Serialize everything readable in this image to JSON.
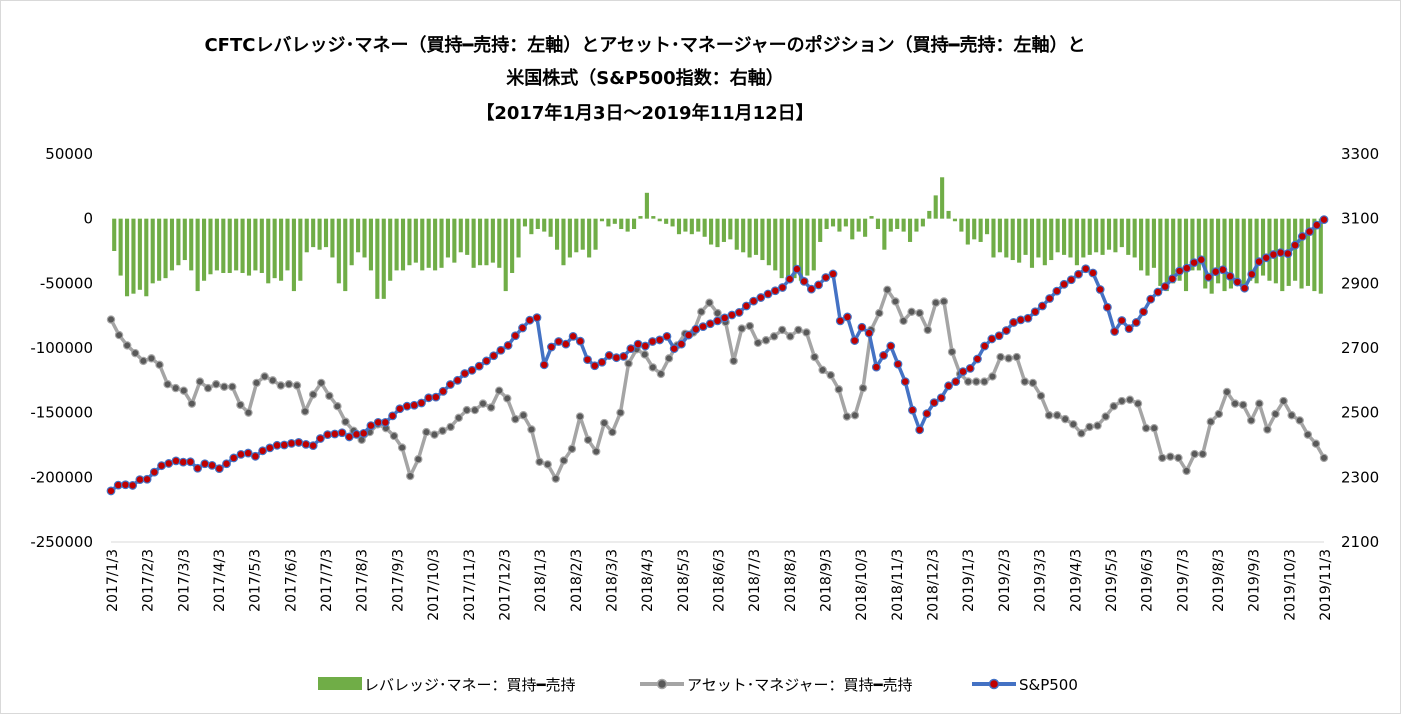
{
  "chart_data": {
    "type": "bar+line",
    "title_lines": [
      "CFTCレバレッジ･マネー（買持━売持：左軸）とアセット･マネージャーのポジション（買持━売持：左軸）と",
      "米国株式（S&P500指数：右軸）",
      "【2017年1月3日～2019年11月12日】"
    ],
    "y_left": {
      "min": -250000,
      "max": 50000,
      "step": 50000,
      "ticks": [
        "50000",
        "0",
        "-50000",
        "-100000",
        "-150000",
        "-200000",
        "-250000"
      ]
    },
    "y_right": {
      "min": 2100,
      "max": 3300,
      "step": 200,
      "ticks": [
        "3300",
        "3100",
        "2900",
        "2700",
        "2500",
        "2300",
        "2100"
      ]
    },
    "x_labels": [
      "2017/1/3",
      "2017/2/3",
      "2017/3/3",
      "2017/4/3",
      "2017/5/3",
      "2017/6/3",
      "2017/7/3",
      "2017/8/3",
      "2017/9/3",
      "2017/10/3",
      "2017/11/3",
      "2017/12/3",
      "2018/1/3",
      "2018/2/3",
      "2018/3/3",
      "2018/4/3",
      "2018/5/3",
      "2018/6/3",
      "2018/7/3",
      "2018/8/3",
      "2018/9/3",
      "2018/10/3",
      "2018/11/3",
      "2018/12/3",
      "2019/1/3",
      "2019/2/3",
      "2019/3/3",
      "2019/4/3",
      "2019/5/3",
      "2019/6/3",
      "2019/7/3",
      "2019/8/3",
      "2019/9/3",
      "2019/10/3",
      "2019/11/3"
    ],
    "series": [
      {
        "name": "レバレッジ･マネー：買持━売持",
        "type": "bar",
        "axis": "left",
        "color": "#70ad47",
        "values": [
          -25000,
          -44000,
          -60000,
          -58000,
          -55000,
          -60000,
          -50000,
          -48000,
          -46000,
          -40000,
          -36000,
          -32000,
          -40000,
          -56000,
          -48000,
          -43000,
          -40000,
          -42000,
          -42000,
          -40000,
          -42000,
          -44000,
          -40000,
          -42000,
          -50000,
          -46000,
          -48000,
          -40000,
          -56000,
          -48000,
          -26000,
          -22000,
          -24000,
          -22000,
          -30000,
          -50000,
          -56000,
          -36000,
          -26000,
          -30000,
          -40000,
          -62000,
          -62000,
          -48000,
          -40000,
          -40000,
          -36000,
          -34000,
          -40000,
          -38000,
          -40000,
          -38000,
          -30000,
          -34000,
          -26000,
          -28000,
          -38000,
          -36000,
          -36000,
          -34000,
          -38000,
          -56000,
          -42000,
          -30000,
          -6000,
          -12000,
          -8000,
          -10000,
          -14000,
          -24000,
          -36000,
          -30000,
          -26000,
          -24000,
          -30000,
          -24000,
          -2000,
          -6000,
          -4000,
          -8000,
          -10000,
          -8000,
          2000,
          20000,
          2000,
          -2000,
          -4000,
          -6000,
          -12000,
          -10000,
          -12000,
          -10000,
          -14000,
          -20000,
          -22000,
          -18000,
          -16000,
          -24000,
          -26000,
          -30000,
          -28000,
          -32000,
          -36000,
          -40000,
          -46000,
          -48000,
          -46000,
          -48000,
          -44000,
          -40000,
          -18000,
          -8000,
          -6000,
          -10000,
          -6000,
          -16000,
          -10000,
          -14000,
          2000,
          -8000,
          -24000,
          -10000,
          -8000,
          -10000,
          -18000,
          -10000,
          -6000,
          6000,
          18000,
          32000,
          6000,
          -2000,
          -10000,
          -20000,
          -16000,
          -18000,
          -12000,
          -30000,
          -26000,
          -30000,
          -32000,
          -34000,
          -28000,
          -38000,
          -30000,
          -36000,
          -32000,
          -26000,
          -28000,
          -30000,
          -36000,
          -30000,
          -28000,
          -26000,
          -28000,
          -24000,
          -26000,
          -22000,
          -28000,
          -30000,
          -40000,
          -44000,
          -38000,
          -52000,
          -56000,
          -50000,
          -48000,
          -56000,
          -40000,
          -40000,
          -54000,
          -58000,
          -50000,
          -56000,
          -54000,
          -52000,
          -52000,
          -48000,
          -50000,
          -44000,
          -48000,
          -50000,
          -56000,
          -52000,
          -48000,
          -54000,
          -52000,
          -56000,
          -58000
        ]
      },
      {
        "name": "アセット･マネジャー：買持━売持",
        "type": "line",
        "axis": "left",
        "color": "#a5a5a5",
        "values": [
          -78000,
          -90000,
          -98000,
          -104000,
          -110000,
          -108000,
          -113000,
          -128000,
          -131000,
          -133000,
          -143000,
          -126000,
          -131000,
          -128000,
          -130000,
          -130000,
          -144000,
          -150000,
          -127000,
          -122000,
          -125000,
          -129000,
          -128000,
          -129000,
          -149000,
          -136000,
          -127000,
          -137000,
          -145000,
          -157000,
          -164000,
          -171000,
          -165000,
          -159000,
          -162000,
          -168000,
          -177000,
          -199000,
          -186000,
          -165000,
          -167000,
          -164000,
          -161000,
          -154000,
          -148000,
          -148000,
          -143000,
          -146000,
          -133000,
          -139000,
          -155000,
          -152000,
          -163000,
          -188000,
          -190000,
          -201000,
          -187000,
          -178000,
          -153000,
          -171000,
          -180000,
          -158000,
          -165000,
          -150000,
          -112000,
          -101000,
          -105000,
          -115000,
          -120000,
          -108000,
          -98000,
          -89000,
          -88000,
          -72000,
          -65000,
          -73000,
          -80000,
          -110000,
          -85000,
          -83000,
          -96000,
          -94000,
          -91000,
          -86000,
          -91000,
          -86000,
          -88000,
          -107000,
          -117000,
          -121000,
          -132000,
          -153000,
          -152000,
          -131000,
          -86000,
          -73000,
          -55000,
          -64000,
          -79000,
          -72000,
          -73000,
          -86000,
          -65000,
          -64000,
          -103000,
          -120000,
          -126000,
          -126000,
          -126000,
          -122000,
          -107000,
          -108000,
          -107000,
          -126000,
          -127000,
          -137000,
          -152000,
          -152000,
          -155000,
          -159000,
          -166000,
          -161000,
          -160000,
          -153000,
          -145000,
          -141000,
          -140000,
          -143000,
          -162000,
          -162000,
          -185000,
          -184000,
          -185000,
          -195000,
          -182000,
          -182000,
          -157000,
          -151000,
          -134000,
          -143000,
          -144000,
          -156000,
          -143000,
          -163000,
          -151000,
          -141000,
          -152000,
          -156000,
          -167000,
          -174000,
          -185000
        ]
      },
      {
        "name": "S&P500",
        "type": "line",
        "axis": "right",
        "color": "#4472c4",
        "marker_color": "#c00000",
        "values": [
          2258,
          2276,
          2277,
          2275,
          2293,
          2294,
          2316,
          2336,
          2343,
          2351,
          2347,
          2348,
          2328,
          2342,
          2337,
          2327,
          2342,
          2360,
          2371,
          2375,
          2365,
          2382,
          2391,
          2399,
          2400,
          2405,
          2408,
          2402,
          2398,
          2420,
          2432,
          2434,
          2438,
          2425,
          2433,
          2436,
          2460,
          2470,
          2470,
          2490,
          2512,
          2520,
          2523,
          2530,
          2546,
          2548,
          2566,
          2587,
          2600,
          2621,
          2631,
          2644,
          2660,
          2676,
          2693,
          2708,
          2738,
          2762,
          2786,
          2794,
          2648,
          2703,
          2720,
          2712,
          2736,
          2721,
          2664,
          2645,
          2656,
          2677,
          2670,
          2674,
          2698,
          2712,
          2706,
          2720,
          2725,
          2736,
          2698,
          2712,
          2740,
          2758,
          2766,
          2775,
          2784,
          2793,
          2802,
          2810,
          2830,
          2845,
          2856,
          2867,
          2877,
          2887,
          2913,
          2944,
          2906,
          2882,
          2895,
          2918,
          2929,
          2784,
          2796,
          2723,
          2764,
          2746,
          2641,
          2677,
          2706,
          2650,
          2596,
          2508,
          2447,
          2497,
          2531,
          2546,
          2583,
          2596,
          2627,
          2637,
          2666,
          2706,
          2728,
          2738,
          2754,
          2779,
          2787,
          2792,
          2812,
          2830,
          2853,
          2876,
          2897,
          2911,
          2928,
          2945,
          2932,
          2881,
          2826,
          2751,
          2785,
          2760,
          2779,
          2812,
          2851,
          2873,
          2890,
          2914,
          2938,
          2947,
          2964,
          2973,
          2919,
          2936,
          2942,
          2922,
          2904,
          2885,
          2928,
          2967,
          2979,
          2989,
          2995,
          2992,
          3018,
          3045,
          3060,
          3080,
          3097
        ]
      }
    ],
    "legend": {
      "position": "bottom",
      "items": [
        "レバレッジ･マネー：買持━売持",
        "アセット･マネジャー：買持━売持",
        "S&P500"
      ]
    }
  }
}
